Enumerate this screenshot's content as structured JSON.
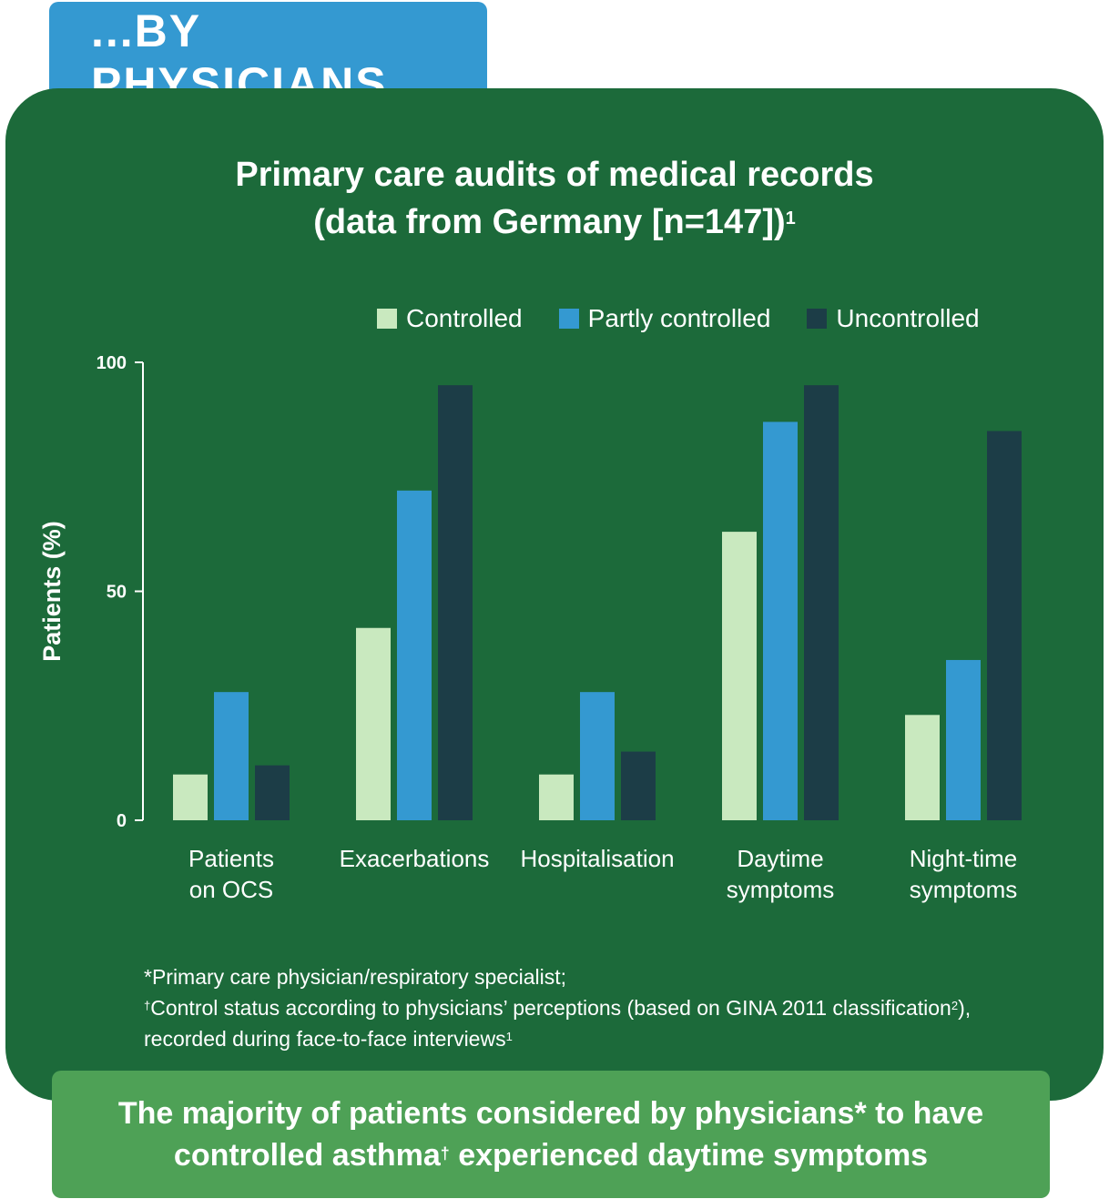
{
  "tab_label": "...BY PHYSICIANS",
  "colors": {
    "tab": "#3499d1",
    "panel": "#1c6a3a",
    "callout": "#4ea156",
    "controlled": "#c9e9bf",
    "partly_controlled": "#3499d1",
    "uncontrolled": "#1c3d47"
  },
  "title": {
    "line1": "Primary care audits of medical records",
    "line2": "(data from Germany [n=147])",
    "line2_sup": "1"
  },
  "chart_data": {
    "type": "bar",
    "ylabel": "Patients (%)",
    "xlabel": "",
    "ylim": [
      0,
      100
    ],
    "yticks": [
      "0",
      "50",
      "100"
    ],
    "legend_position": "top-right",
    "grid": false,
    "categories": [
      [
        "Patients",
        "on OCS"
      ],
      [
        "Exacerbations"
      ],
      [
        "Hospitalisation"
      ],
      [
        "Daytime",
        "symptoms"
      ],
      [
        "Night-time",
        "symptoms"
      ]
    ],
    "series": [
      {
        "name": "Controlled",
        "color": "#c9e9bf",
        "values": [
          10,
          42,
          10,
          63,
          23
        ]
      },
      {
        "name": "Partly controlled",
        "color": "#3499d1",
        "values": [
          28,
          72,
          28,
          87,
          35
        ]
      },
      {
        "name": "Uncontrolled",
        "color": "#1c3d47",
        "values": [
          12,
          95,
          15,
          95,
          85
        ]
      }
    ]
  },
  "footnotes": {
    "fn1": "*Primary care physician/respiratory specialist;",
    "fn2_mark": "†",
    "fn2_text": "Control status according to physicians’ perceptions (based on GINA 2011 classification",
    "fn2_sup": "2",
    "fn2_tail": "),",
    "fn3_text": "recorded during face-to-face interviews",
    "fn3_sup": "1"
  },
  "callout": {
    "line1": "The majority of patients considered by physicians* to have",
    "line2_a": "controlled asthma",
    "line2_mark": "†",
    "line2_b": " experienced daytime symptoms"
  }
}
